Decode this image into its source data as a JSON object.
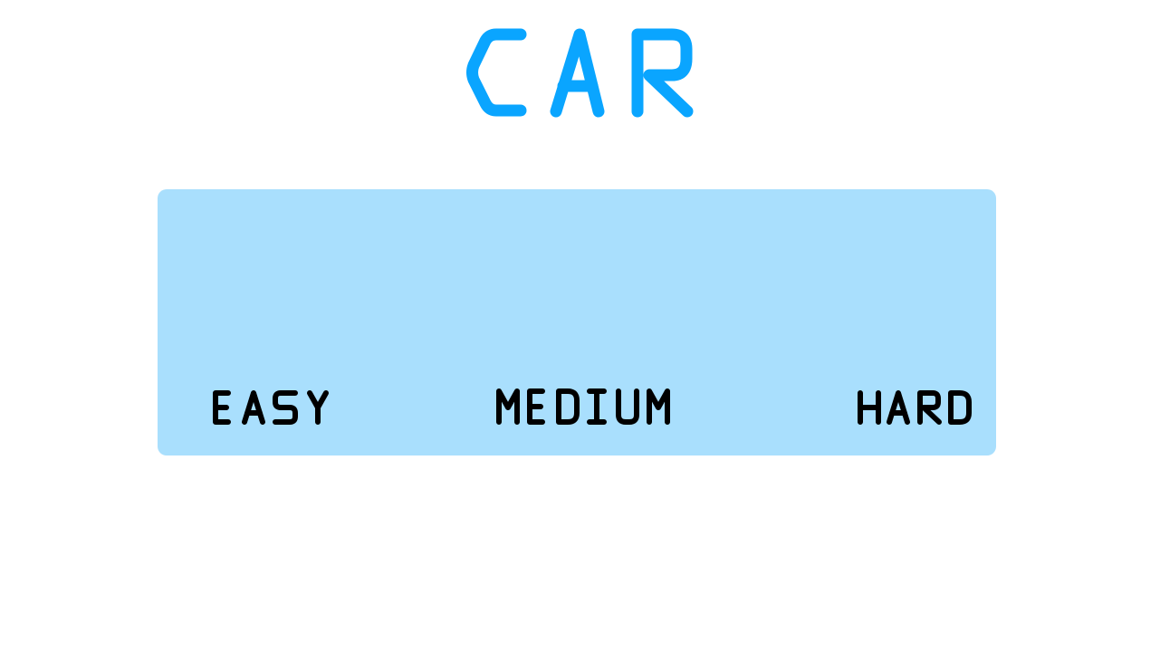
{
  "title": "CAR",
  "levels": [
    {
      "label": "EASY"
    },
    {
      "label": "MEDIUM"
    },
    {
      "label": "HARD"
    }
  ],
  "colors": {
    "title": "#0aa5ff",
    "panel": "#a9dffd",
    "level_text": "#000000",
    "background": "#ffffff"
  }
}
